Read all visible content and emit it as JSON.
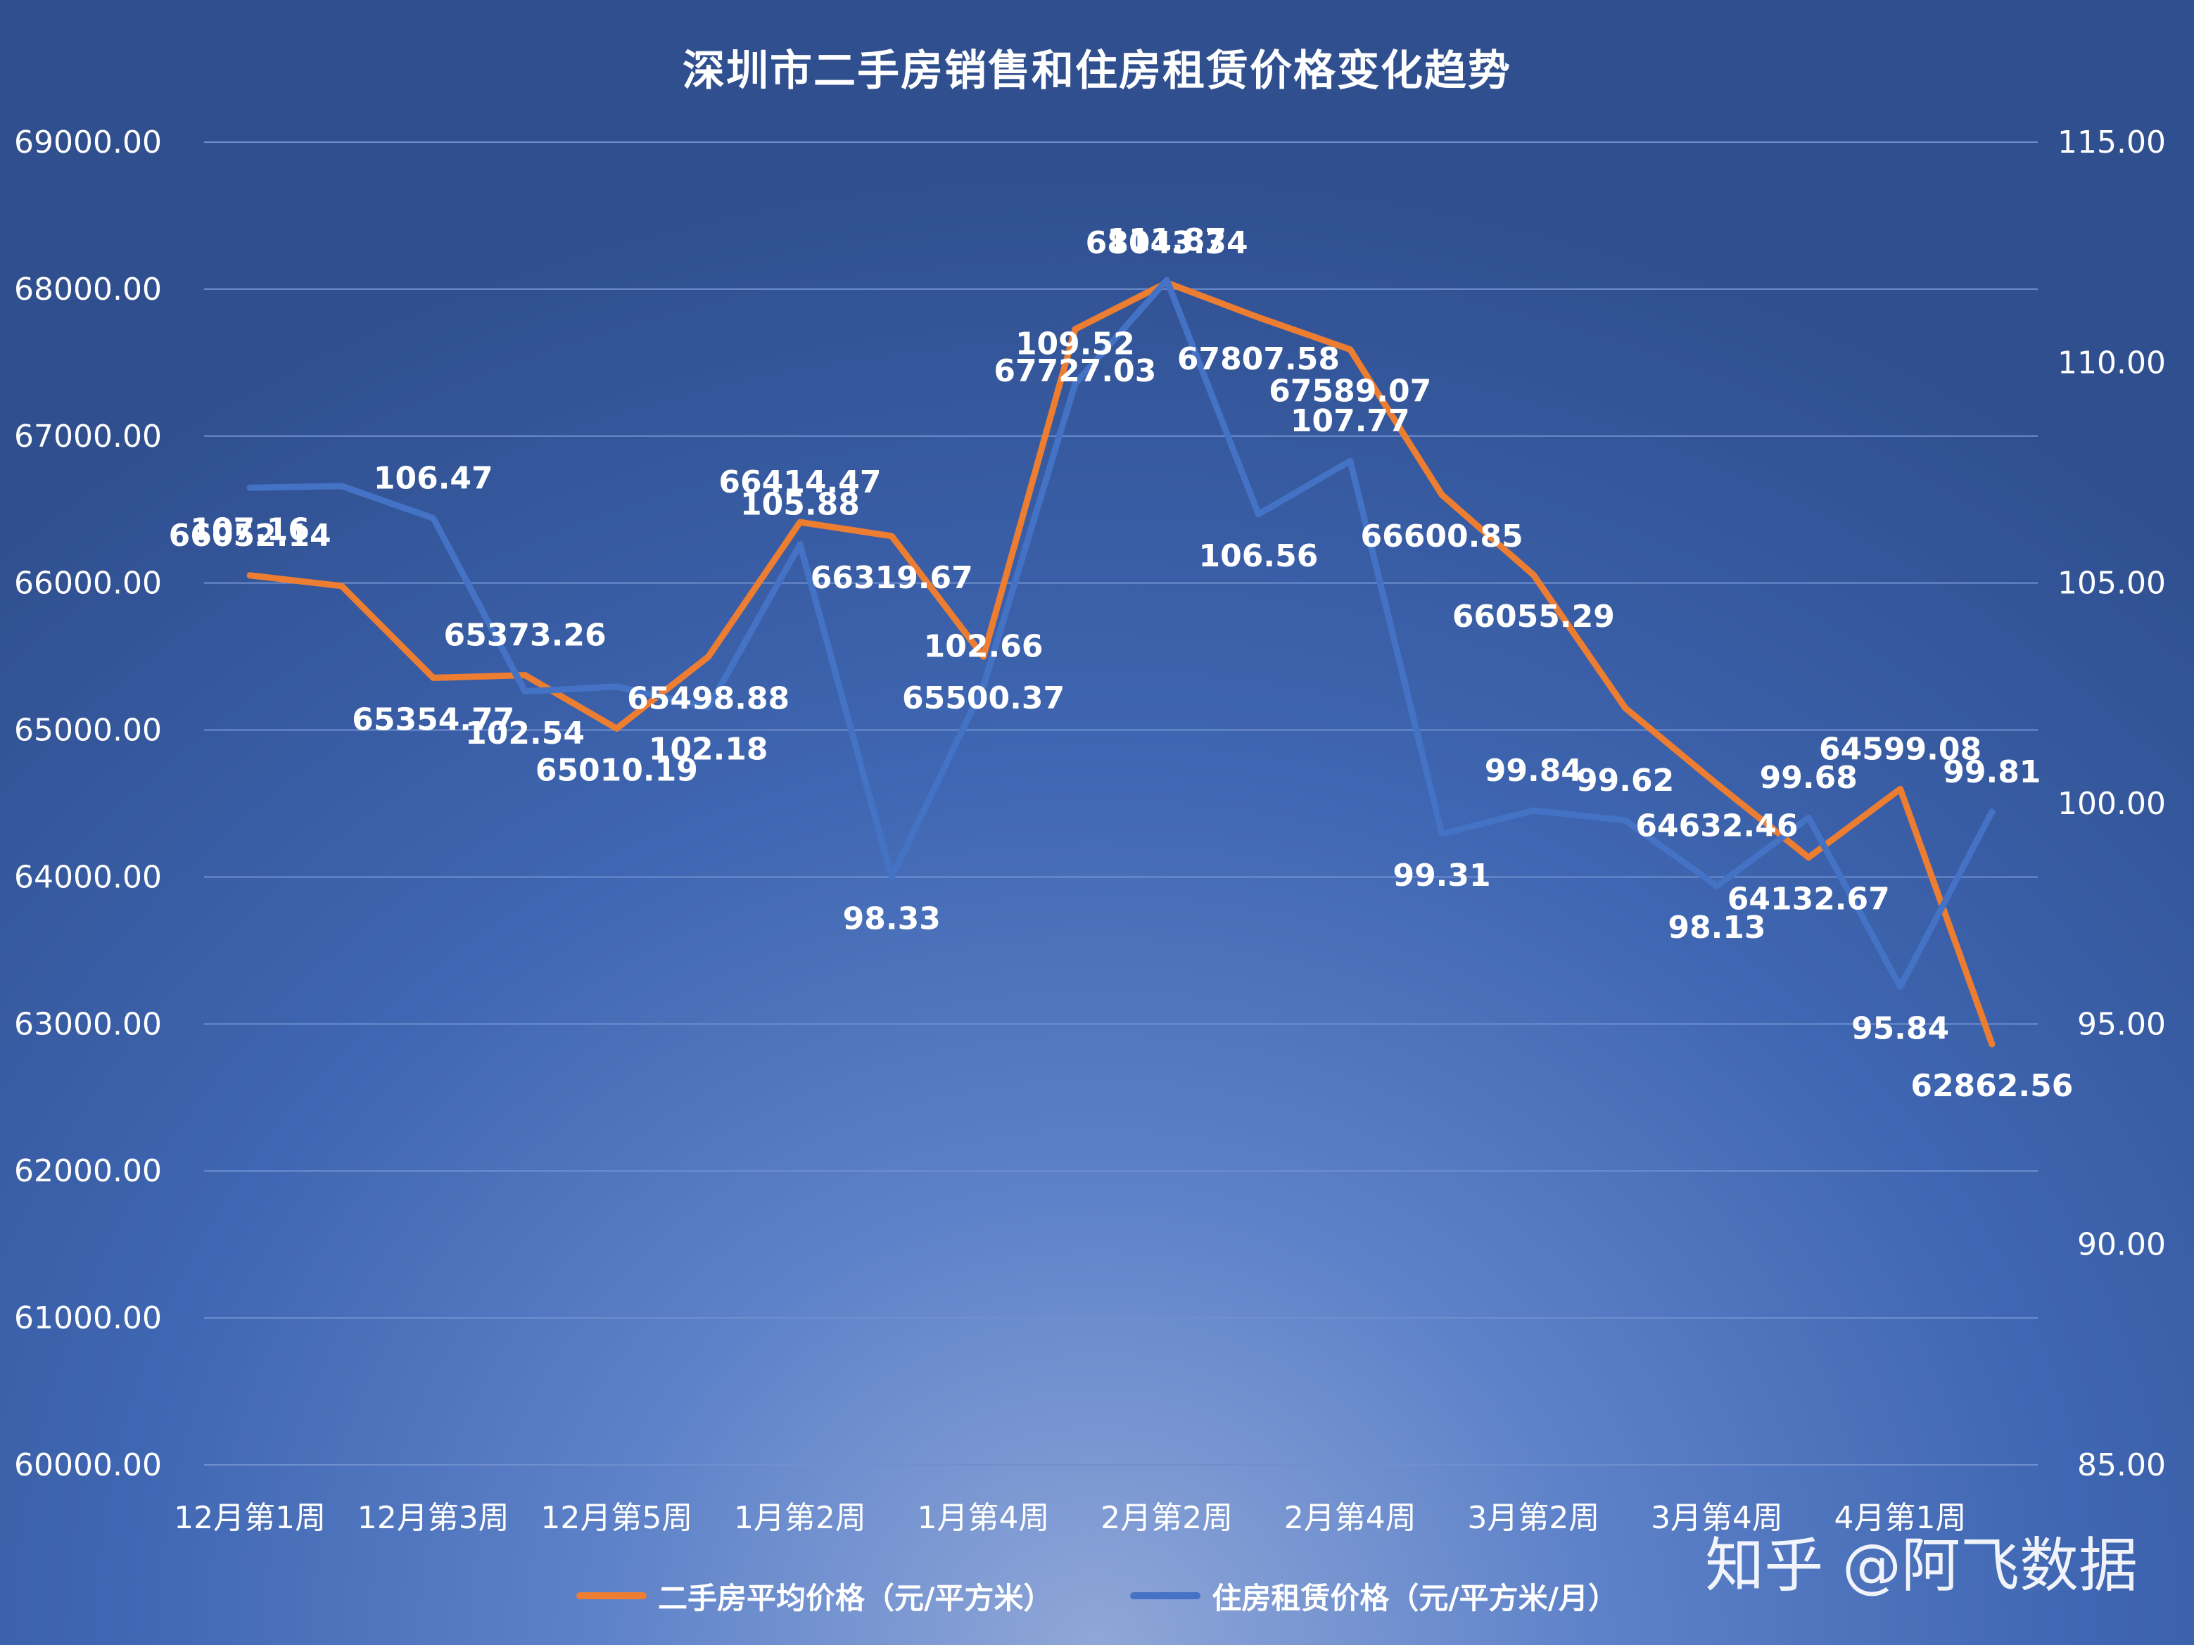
{
  "title": "深圳市二手房销售和住房租赁价格变化趋势",
  "watermark": "知乎 @阿飞数据",
  "colors": {
    "sale": "#ED7D31",
    "rent": "#4472C4",
    "text": "#FFFFFF",
    "grid": "#6f8fcf"
  },
  "chart_data": {
    "type": "line",
    "title": "深圳市二手房销售和住房租赁价格变化趋势",
    "x_tick_labels": [
      "12月第1周",
      "12月第3周",
      "12月第5周",
      "1月第2周",
      "1月第4周",
      "2月第2周",
      "2月第4周",
      "3月第2周",
      "3月第4周",
      "4月第1周"
    ],
    "x_tick_every": 2,
    "num_points": 20,
    "y_left": {
      "min": 60000,
      "max": 69000,
      "step": 1000,
      "tick_labels": [
        "60000.00",
        "61000.00",
        "62000.00",
        "63000.00",
        "64000.00",
        "65000.00",
        "66000.00",
        "67000.00",
        "68000.00",
        "69000.00"
      ]
    },
    "y_right": {
      "min": 85,
      "max": 115,
      "step": 5,
      "tick_labels": [
        "85.00",
        "90.00",
        "95.00",
        "100.00",
        "105.00",
        "110.00",
        "115.00"
      ]
    },
    "grid": true,
    "legend_position": "bottom",
    "series": [
      {
        "name": "二手房平均价格（元/平方米）",
        "axis": "left",
        "color": "#ED7D31",
        "values": [
          66052.14,
          65980,
          65354.77,
          65373.26,
          65010.19,
          65498.88,
          66414.47,
          66319.67,
          65500.37,
          67727.03,
          68043.34,
          67807.58,
          67589.07,
          66600.85,
          66055.29,
          65150,
          64632.46,
          64132.67,
          64599.08,
          62862.56
        ],
        "labels": [
          "66052.14",
          "",
          "65354.77",
          "65373.26",
          "65010.19",
          "65498.88",
          "66414.47",
          "66319.67",
          "65500.37",
          "67727.03",
          "68043.34",
          "67807.58",
          "67589.07",
          "66600.85",
          "66055.29",
          "",
          "64632.46",
          "64132.67",
          "64599.08",
          "62862.56"
        ]
      },
      {
        "name": "住房租赁价格（元/平方米/月）",
        "axis": "right",
        "color": "#4472C4",
        "values": [
          107.16,
          107.2,
          106.47,
          102.54,
          102.65,
          102.18,
          105.88,
          98.33,
          102.66,
          109.52,
          111.87,
          106.56,
          107.77,
          99.31,
          99.84,
          99.62,
          98.13,
          99.68,
          95.84,
          99.81
        ],
        "labels": [
          "107.16",
          "",
          "106.47",
          "102.54",
          "",
          "102.18",
          "105.88",
          "98.33",
          "102.66",
          "109.52",
          "111.87",
          "106.56",
          "107.77",
          "99.31",
          "99.84",
          "99.62",
          "98.13",
          "99.68",
          "95.84",
          "99.81"
        ]
      }
    ]
  }
}
